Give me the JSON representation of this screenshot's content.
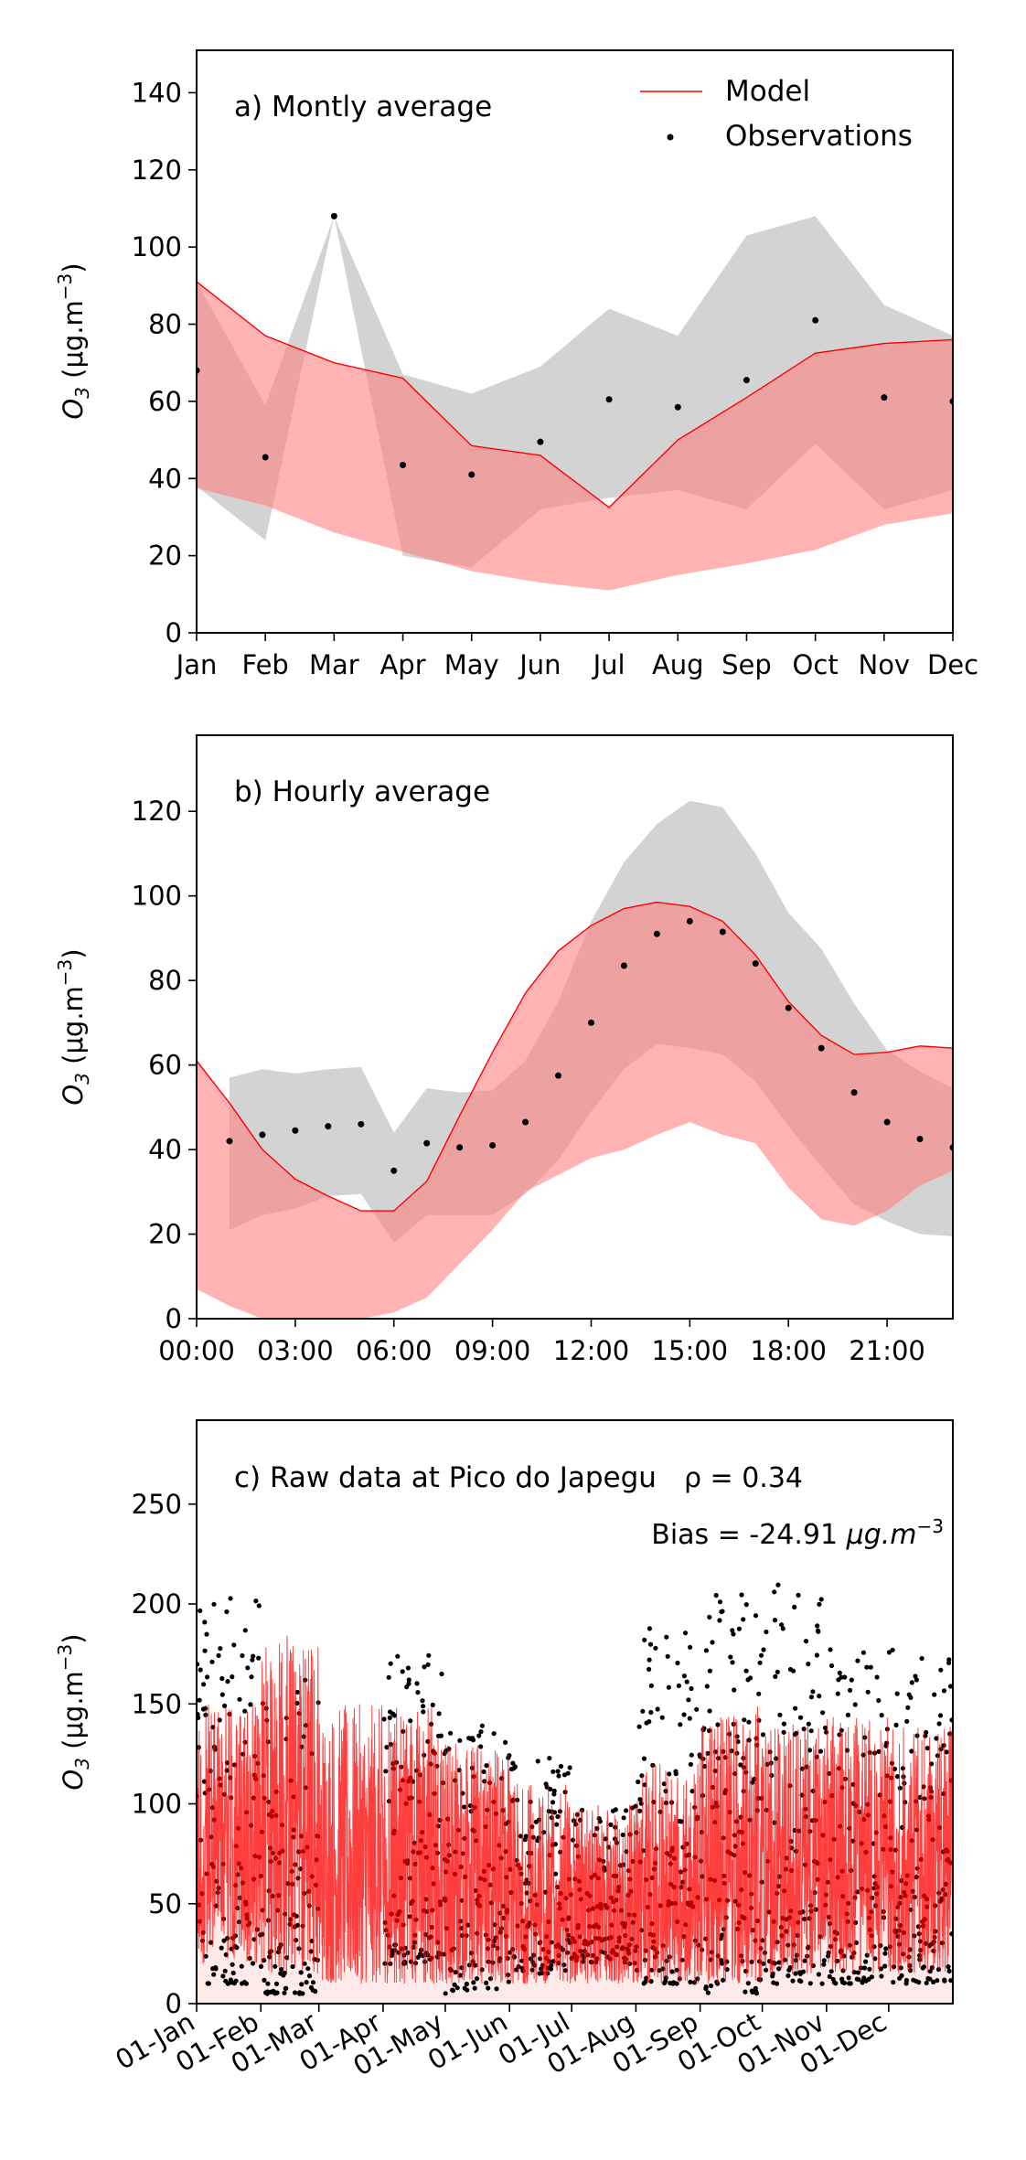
{
  "figure": {
    "panels": [
      {
        "key": "monthly",
        "title": "a) Montly average",
        "ylabel_main": "O",
        "ylabel_sub": "3",
        "ylabel_unit": " (μg.m",
        "ylabel_exp": "−3",
        "ylabel_close": ")"
      },
      {
        "key": "hourly",
        "title": "b) Hourly average",
        "ylabel_main": "O",
        "ylabel_sub": "3",
        "ylabel_unit": " (μg.m",
        "ylabel_exp": "−3",
        "ylabel_close": ")"
      },
      {
        "key": "raw",
        "title": "c) Raw data at Pico do Japegu",
        "ylabel_main": "O",
        "ylabel_sub": "3",
        "ylabel_unit": " (μg.m",
        "ylabel_exp": "−3",
        "ylabel_close": ")",
        "rho_text": "ρ = 0.34",
        "bias_text": "Bias = -24.91 ",
        "bias_unit": "μg.m",
        "bias_exp": "−3"
      }
    ],
    "legend": {
      "model": "Model",
      "observations": "Observations"
    },
    "colors": {
      "model_line": "#ff0000",
      "model_band": "#ffb3b3",
      "obs_band": "#d3d3d3",
      "obs_point": "#000000",
      "overlap_band": "#d9a3a3"
    }
  },
  "chart_data": [
    {
      "type": "line",
      "title": "a) Montly average",
      "ylabel": "O3 (μg.m−3)",
      "categories": [
        "Jan",
        "Feb",
        "Mar",
        "Apr",
        "May",
        "Jun",
        "Jul",
        "Aug",
        "Sep",
        "Oct",
        "Nov",
        "Dec"
      ],
      "ylim": [
        0,
        151
      ],
      "yticks": [
        0,
        20,
        40,
        60,
        80,
        100,
        120,
        140
      ],
      "series": [
        {
          "name": "Model",
          "values": [
            91,
            77,
            70,
            66,
            48.5,
            46,
            32.5,
            50,
            61,
            72.5,
            75,
            76
          ]
        },
        {
          "name": "Observations",
          "values": [
            68,
            45.5,
            108,
            43.5,
            41,
            49.5,
            60.5,
            58.5,
            65.5,
            81,
            61,
            60
          ]
        }
      ],
      "model_band": {
        "upper": [
          91,
          77,
          70,
          66,
          48.5,
          46,
          32.5,
          50,
          61,
          72.5,
          75,
          76
        ],
        "lower": [
          37.5,
          33,
          26,
          21,
          16,
          13,
          11,
          15,
          18,
          21.5,
          28,
          31
        ]
      },
      "obs_band": {
        "upper": [
          91,
          59,
          108,
          67,
          62,
          69,
          84,
          77,
          103,
          108,
          85,
          77
        ],
        "lower": [
          38,
          24,
          108,
          20,
          17,
          32,
          35,
          37,
          32,
          49,
          32,
          37
        ]
      },
      "grid": false,
      "legend": "top-right"
    },
    {
      "type": "line",
      "title": "b) Hourly average",
      "ylabel": "O3 (μg.m−3)",
      "x": [
        0,
        1,
        2,
        3,
        4,
        5,
        6,
        7,
        8,
        9,
        10,
        11,
        12,
        13,
        14,
        15,
        16,
        17,
        18,
        19,
        20,
        21,
        22,
        23
      ],
      "x_tick_labels": [
        "00:00",
        "03:00",
        "06:00",
        "09:00",
        "12:00",
        "15:00",
        "18:00",
        "21:00"
      ],
      "x_tick_values": [
        0,
        3,
        6,
        9,
        12,
        15,
        18,
        21
      ],
      "ylim": [
        0,
        138
      ],
      "yticks": [
        0,
        20,
        40,
        60,
        80,
        100,
        120
      ],
      "series": [
        {
          "name": "Model",
          "values": [
            61,
            51,
            40,
            33,
            29,
            25.5,
            25.5,
            32.5,
            48,
            63,
            77,
            87,
            93,
            97,
            98.5,
            97.5,
            94,
            86,
            75,
            67,
            62.5,
            63,
            64.5,
            64
          ]
        },
        {
          "name": "Observations",
          "values": [
            null,
            42,
            43.5,
            44.5,
            45.5,
            46,
            35,
            41.5,
            40.5,
            41,
            46.5,
            57.5,
            70,
            83.5,
            91,
            94,
            91.5,
            84,
            73.5,
            64,
            53.5,
            46.5,
            42.5,
            40.5
          ]
        }
      ],
      "model_band": {
        "upper": [
          61,
          51,
          40,
          33,
          29,
          25.5,
          25.5,
          32.5,
          48,
          63,
          77,
          87,
          93,
          97,
          98.5,
          97.5,
          94,
          86,
          75,
          67,
          62.5,
          63,
          64.5,
          64
        ],
        "lower": [
          7,
          3,
          0,
          0,
          0,
          0,
          1.5,
          5,
          13,
          21,
          30,
          34,
          38,
          40,
          43.5,
          46.5,
          43.5,
          41.5,
          31,
          23.5,
          22,
          25.5,
          31.5,
          35
        ]
      },
      "obs_band": {
        "upper": [
          null,
          57,
          59,
          58,
          59,
          59.5,
          44,
          54.5,
          53.5,
          54,
          61,
          75,
          94,
          108,
          117,
          122.5,
          121,
          110,
          96,
          87.5,
          74.5,
          63.5,
          58.5,
          54.5
        ],
        "lower": [
          null,
          21,
          24.5,
          26,
          29,
          29.5,
          18,
          24.5,
          24.5,
          24.5,
          29.5,
          37.5,
          49,
          59,
          65,
          64,
          62.5,
          56,
          45.5,
          36,
          27,
          23,
          20,
          19.5
        ]
      },
      "grid": false
    },
    {
      "type": "line",
      "title": "c) Raw data at Pico do Japegu",
      "ylabel": "O3 (μg.m−3)",
      "annotations": [
        "ρ = 0.34",
        "Bias = -24.91 μg.m−3"
      ],
      "x_domain": [
        "2018-01-01",
        "2018-12-31"
      ],
      "x_tick_labels": [
        "01-Jan",
        "01-Feb",
        "01-Mar",
        "01-Apr",
        "01-May",
        "01-Jun",
        "01-Jul",
        "01-Aug",
        "01-Sep",
        "01-Oct",
        "01-Nov",
        "01-Dec"
      ],
      "x_tick_dates": [
        "2018-01-01",
        "2018-02-01",
        "2018-03-01",
        "2018-04-01",
        "2018-05-01",
        "2018-06-01",
        "2018-07-01",
        "2018-08-01",
        "2018-09-01",
        "2018-10-01",
        "2018-11-01",
        "2018-12-01"
      ],
      "ylim": [
        0,
        292
      ],
      "yticks": [
        0,
        50,
        100,
        150,
        200,
        250
      ],
      "series": [
        {
          "name": "Model",
          "description": "hourly model time series, daily envelope (min, max) by month",
          "monthly_envelope": {
            "months": [
              "Jan",
              "Feb",
              "Mar",
              "Apr",
              "May",
              "Jun",
              "Jul",
              "Aug",
              "Sep",
              "Oct",
              "Nov",
              "Dec"
            ],
            "typical_low": [
              20,
              15,
              10,
              10,
              10,
              10,
              10,
              10,
              10,
              15,
              15,
              15
            ],
            "typical_high": [
              150,
              185,
              150,
              150,
              130,
              110,
              100,
              120,
              150,
              140,
              145,
              140
            ]
          }
        },
        {
          "name": "Observations",
          "description": "hourly observations, daily envelope by month",
          "monthly_envelope": {
            "months": [
              "Jan",
              "Feb",
              "Mar",
              "Apr",
              "May",
              "Jun",
              "Jul",
              "Aug",
              "Sep",
              "Oct",
              "Nov",
              "Dec"
            ],
            "typical_low": [
              10,
              5,
              null,
              20,
              5,
              15,
              20,
              10,
              5,
              10,
              10,
              10
            ],
            "typical_high": [
              205,
              170,
              null,
              175,
              140,
              125,
              100,
              190,
              205,
              210,
              180,
              180
            ]
          }
        }
      ],
      "grid": false
    }
  ]
}
